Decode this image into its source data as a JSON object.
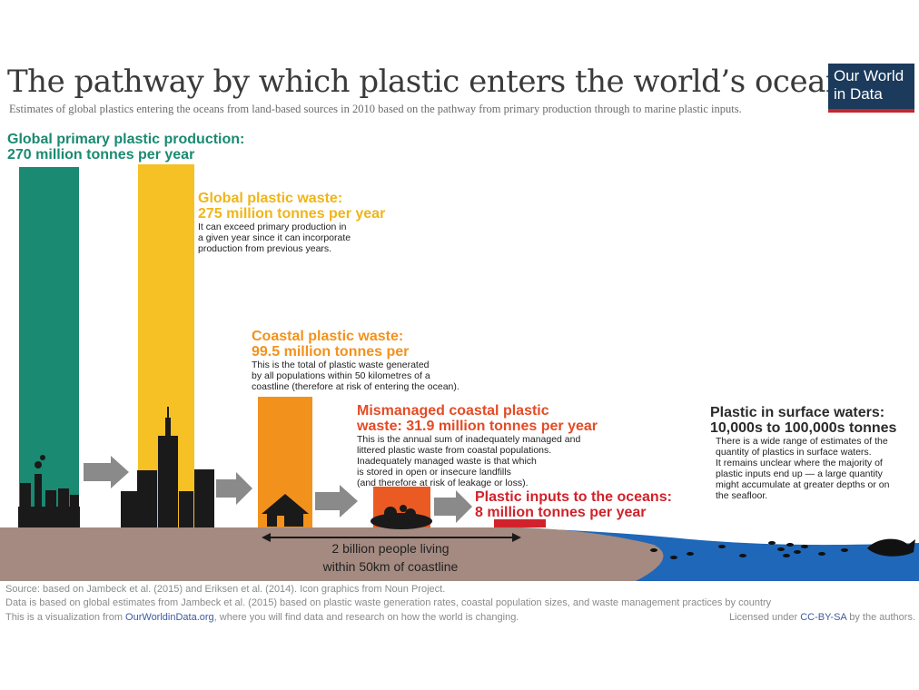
{
  "header": {
    "title": "The pathway by which plastic enters the world’s oceans",
    "subtitle": "Estimates of global plastics entering the oceans from land-based sources in 2010 based on the pathway from primary production through to marine plastic inputs.",
    "logo_line1": "Our World",
    "logo_line2": "in Data"
  },
  "stages": {
    "production": {
      "line1": "Global primary plastic production:",
      "line2": "270 million tonnes per year"
    },
    "waste": {
      "line1": "Global plastic waste:",
      "line2": "275 million tonnes per year",
      "desc": [
        "It can exceed primary production in",
        "a given year since it can incorporate",
        "production from previous years."
      ]
    },
    "coastal": {
      "line1": "Coastal plastic waste:",
      "line2": "99.5 million tonnes per",
      "desc": [
        "This is the total of plastic waste generated",
        "by all populations within 50 kilometres of a",
        "coastline (therefore at risk of entering the ocean)."
      ]
    },
    "mismanaged": {
      "line1": "Mismanaged coastal plastic",
      "line2": "waste: 31.9 million tonnes per year",
      "desc": [
        "This is the annual sum of inadequately managed and",
        "littered plastic waste from coastal populations.",
        "Inadequately managed waste is that which",
        "is stored in open or insecure landfills",
        "(and therefore at risk of leakage or loss)."
      ]
    },
    "inputs": {
      "line1": "Plastic inputs to the oceans:",
      "line2": "8 million tonnes per year"
    },
    "surface": {
      "line1": "Plastic in surface waters:",
      "line2": "10,000s to 100,000s tonnes",
      "desc": [
        "There is a wide range of estimates of the",
        "quantity of plastics in surface waters.",
        "It remains unclear where the majority of",
        "plastic inputs end up — a large quantity",
        "might accumulate at greater depths or on",
        "the seafloor."
      ]
    }
  },
  "people": {
    "line1": "2 billion people living",
    "line2": "within 50km of coastline"
  },
  "footer": {
    "source": "Source: based on Jambeck et al. (2015) and Eriksen et al. (2014). Icon graphics from Noun Project.",
    "data_note": "Data is based on global estimates from Jambeck et al. (2015) based on plastic waste generation rates, coastal population sizes, and waste management practices by country",
    "viz_prefix": "This is a visualization from ",
    "viz_link": "OurWorldinData.org",
    "viz_suffix": ", where you will find data and research on how the world is changing.",
    "license_prefix": "Licensed under ",
    "license_link": "CC-BY-SA",
    "license_suffix": " by the authors."
  },
  "colors": {
    "production": "#1a8a72",
    "waste": "#f5c125",
    "coastal": "#f2921d",
    "mismanaged": "#ec5a24",
    "inputs": "#d1222b",
    "ground": "#a48a80",
    "ocean": "#1f67b8",
    "arrow": "#8a8a8a"
  }
}
